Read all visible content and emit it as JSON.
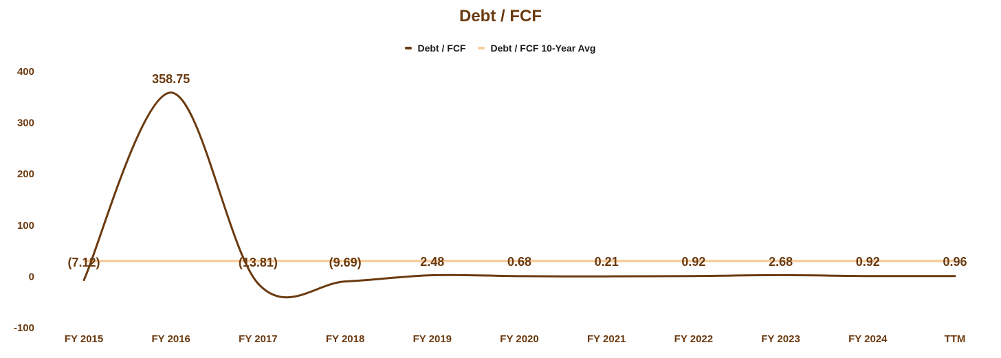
{
  "chart_data": {
    "type": "line",
    "title": "Debt / FCF",
    "categories": [
      "FY 2015",
      "FY 2016",
      "FY 2017",
      "FY 2018",
      "FY 2019",
      "FY 2020",
      "FY 2021",
      "FY 2022",
      "FY 2023",
      "FY 2024",
      "TTM"
    ],
    "series": [
      {
        "name": "Debt / FCF",
        "color": "#6b3a10",
        "values": [
          -7.12,
          358.75,
          -13.81,
          -9.69,
          2.48,
          0.68,
          0.21,
          0.92,
          2.68,
          0.92,
          0.96
        ],
        "data_labels": [
          "(7.12)",
          "358.75",
          "(13.81)",
          "(9.69)",
          "2.48",
          "0.68",
          "0.21",
          "0.92",
          "2.68",
          "0.92",
          "0.96"
        ]
      },
      {
        "name": "Debt / FCF 10-Year Avg",
        "color": "#f8cc9c",
        "values": [
          30.46,
          30.46,
          30.46,
          30.46,
          30.46,
          30.46,
          30.46,
          30.46,
          30.46,
          30.46,
          30.46
        ]
      }
    ],
    "y_ticks": [
      400,
      300,
      200,
      100,
      0,
      -100
    ],
    "y_tick_labels": [
      "400",
      "300",
      "200",
      "100",
      "0",
      "-100"
    ],
    "ylim": [
      -100,
      400
    ],
    "grid": false,
    "legend_position": "top-center"
  }
}
